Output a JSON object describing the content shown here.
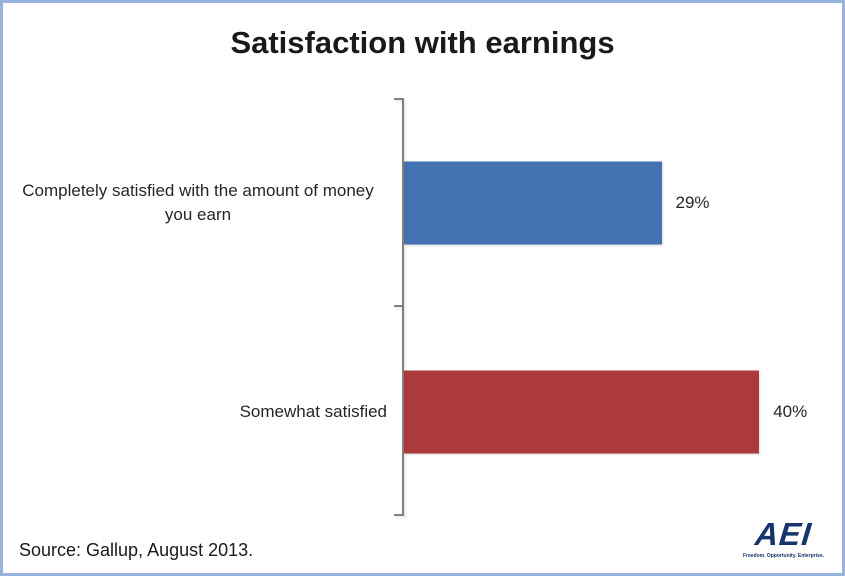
{
  "chart_data": {
    "type": "bar",
    "orientation": "horizontal",
    "title": "Satisfaction with earnings",
    "categories": [
      "Completely satisfied with the amount of money you earn",
      "Somewhat satisfied"
    ],
    "values": [
      29,
      40
    ],
    "value_labels": [
      "29%",
      "40%"
    ],
    "bar_colors": [
      "#4471B1",
      "#AC3A3C"
    ],
    "xlim": [
      0,
      50
    ],
    "grid": false,
    "legend": false,
    "axis_color": "#808080"
  },
  "footer": {
    "source": "Source: Gallup, August 2013."
  },
  "logo": {
    "text": "AEI",
    "tagline": "Freedom. Opportunity. Enterprise.",
    "color": "#17356B"
  },
  "colors": {
    "frame_border": "#98B4DC",
    "background": "#FFFFFF",
    "text": "#262626"
  }
}
